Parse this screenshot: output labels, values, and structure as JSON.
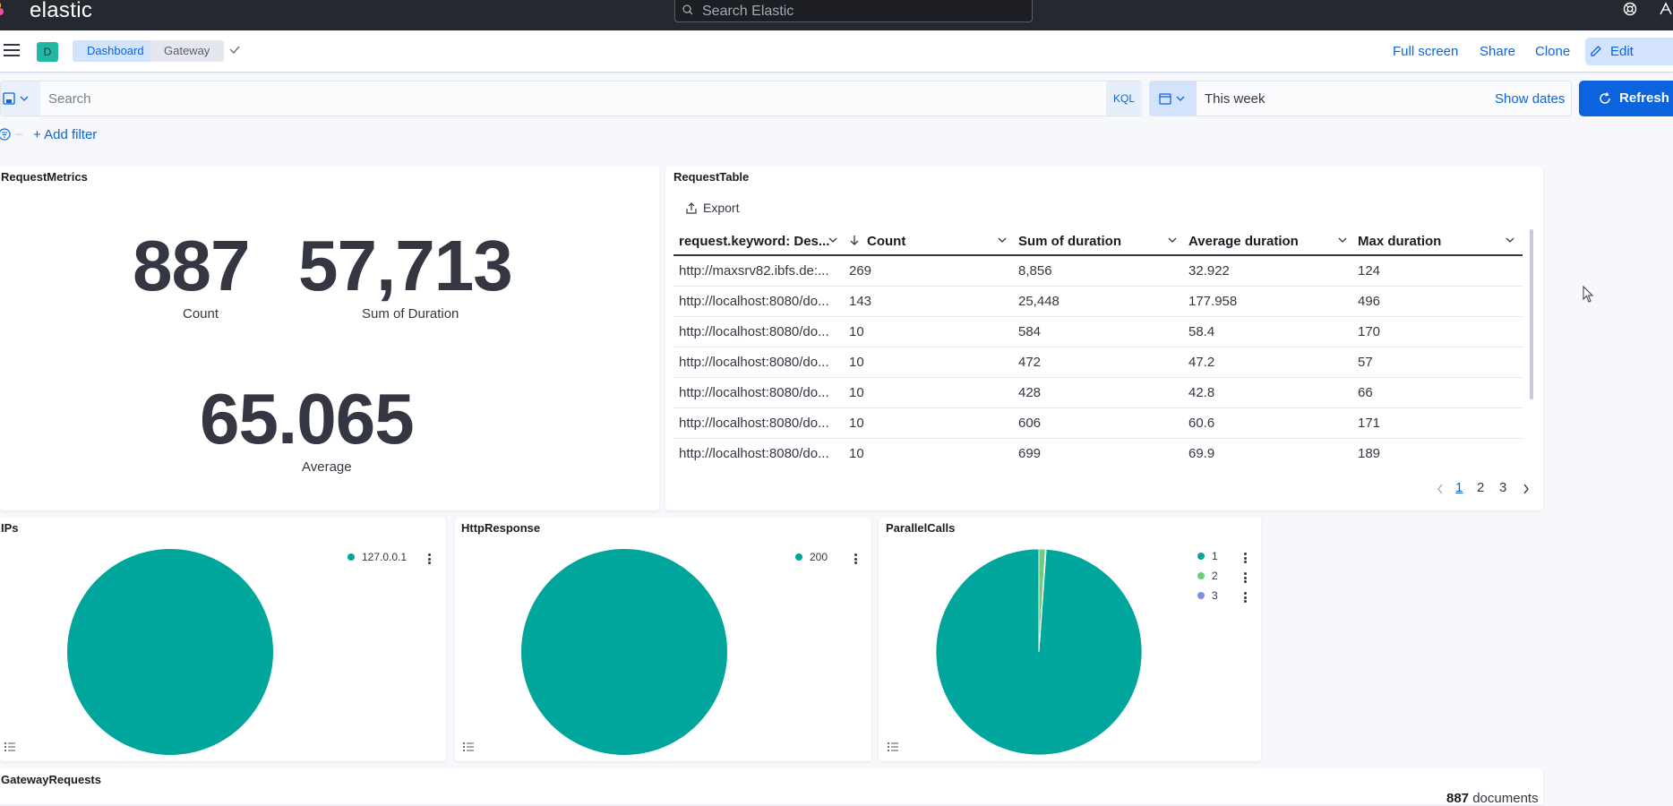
{
  "header": {
    "brand": "elastic",
    "search_placeholder": "Search Elastic"
  },
  "navbar": {
    "space_initial": "D",
    "breadcrumbs": [
      "Dashboard",
      "Gateway"
    ],
    "actions": {
      "full_screen": "Full screen",
      "share": "Share",
      "clone": "Clone",
      "edit": "Edit"
    }
  },
  "query": {
    "placeholder": "Search",
    "language": "KQL",
    "date_range": "This week",
    "show_dates": "Show dates",
    "refresh": "Refresh"
  },
  "filters": {
    "add_filter": "+ Add filter"
  },
  "request_metrics": {
    "title": "RequestMetrics",
    "metrics": [
      {
        "value": "887",
        "label": "Count"
      },
      {
        "value": "57,713",
        "label": "Sum of Duration"
      },
      {
        "value": "65.065",
        "label": "Average"
      }
    ]
  },
  "request_table": {
    "title": "RequestTable",
    "export": "Export",
    "columns": [
      "request.keyword: Des...",
      "Count",
      "Sum of duration",
      "Average duration",
      "Max duration"
    ],
    "rows": [
      [
        "http://maxsrv82.ibfs.de:...",
        "269",
        "8,856",
        "32.922",
        "124"
      ],
      [
        "http://localhost:8080/do...",
        "143",
        "25,448",
        "177.958",
        "496"
      ],
      [
        "http://localhost:8080/do...",
        "10",
        "584",
        "58.4",
        "170"
      ],
      [
        "http://localhost:8080/do...",
        "10",
        "472",
        "47.2",
        "57"
      ],
      [
        "http://localhost:8080/do...",
        "10",
        "428",
        "42.8",
        "66"
      ],
      [
        "http://localhost:8080/do...",
        "10",
        "606",
        "60.6",
        "171"
      ],
      [
        "http://localhost:8080/do...",
        "10",
        "699",
        "69.9",
        "189"
      ]
    ],
    "pages": [
      "1",
      "2",
      "3"
    ],
    "current_page": "1"
  },
  "ips": {
    "title": "IPs",
    "legend": [
      "127.0.0.1"
    ]
  },
  "http_response": {
    "title": "HttpResponse",
    "legend": [
      "200"
    ]
  },
  "parallel_calls": {
    "title": "ParallelCalls",
    "legend": [
      "1",
      "2",
      "3"
    ]
  },
  "gateway_requests": {
    "title": "GatewayRequests",
    "count": "887",
    "count_label": "documents"
  },
  "colors": {
    "teal": "#00a69b",
    "green": "#6dcc7e",
    "purple": "#7b8ee0",
    "accent": "#0b64dd"
  },
  "chart_data": [
    {
      "type": "pie",
      "title": "IPs",
      "categories": [
        "127.0.0.1"
      ],
      "values": [
        887
      ]
    },
    {
      "type": "pie",
      "title": "HttpResponse",
      "categories": [
        "200"
      ],
      "values": [
        887
      ]
    },
    {
      "type": "pie",
      "title": "ParallelCalls",
      "categories": [
        "1",
        "2",
        "3"
      ],
      "values": [
        877,
        9,
        1
      ]
    }
  ]
}
